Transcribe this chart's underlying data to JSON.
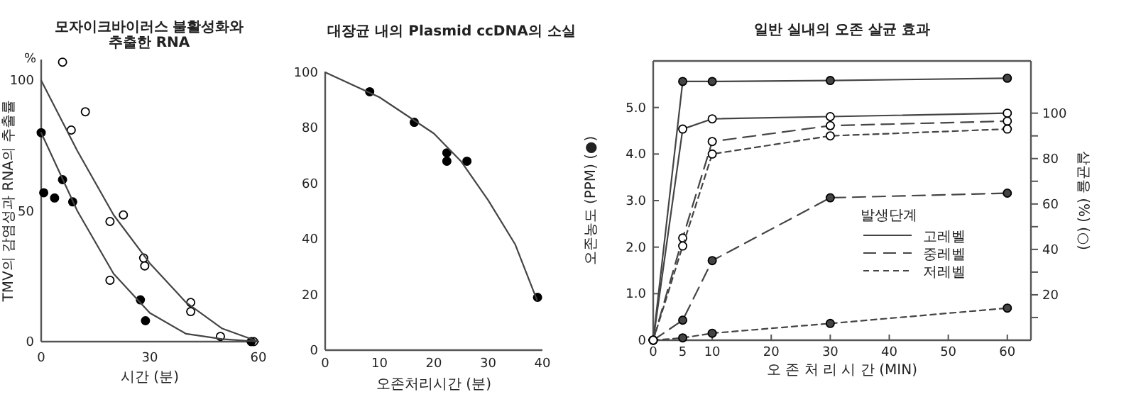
{
  "chart_data": [
    {
      "type": "scatter",
      "title": "모자이크바이러스 불활성화와\n추출한 RNA",
      "xlabel": "시간 (분)",
      "ylabel": "TMV의 감염성과 RNA의 추출률",
      "annotations": [
        "%"
      ],
      "xlim": [
        0,
        60
      ],
      "ylim": [
        0,
        108
      ],
      "xticks": [
        0,
        30,
        60
      ],
      "yticks": [
        0,
        50,
        100
      ],
      "series": [
        {
          "color": "#ffffff",
          "marker": "circle",
          "x": [
            5.9,
            8.3,
            12.2,
            19.0,
            22.7,
            28.3,
            28.6,
            19.0,
            41.3,
            41.3,
            49.5,
            58.7
          ],
          "values": [
            107,
            81,
            88,
            46,
            48.5,
            32,
            29,
            23.5,
            15,
            11.5,
            2,
            0
          ]
        },
        {
          "color": "#000000",
          "marker": "circle",
          "x": [
            0,
            0.7,
            3.7,
            5.9,
            8.7,
            27.4,
            28.8,
            58
          ],
          "values": [
            80,
            57,
            55,
            62,
            53.5,
            16,
            8,
            0
          ]
        },
        {
          "type": "line",
          "color": "#444444",
          "marker": "none",
          "x": [
            0,
            10,
            20,
            30,
            40,
            50,
            60
          ],
          "values": [
            100,
            73,
            48.5,
            30,
            15,
            5,
            0
          ]
        },
        {
          "type": "line",
          "color": "#444444",
          "marker": "none",
          "x": [
            0,
            10,
            20,
            30,
            40,
            50,
            60
          ],
          "values": [
            80,
            50,
            26,
            11,
            3,
            1,
            0
          ]
        }
      ]
    },
    {
      "type": "scatter",
      "title": "대장균 내의 Plasmid ccDNA의 소실",
      "xlabel": "오존처리시간 (분)",
      "xlim": [
        0,
        40
      ],
      "ylim": [
        0,
        100
      ],
      "xticks": [
        0,
        10,
        20,
        30,
        40
      ],
      "yticks": [
        0,
        20,
        40,
        60,
        80,
        100
      ],
      "series": [
        {
          "color": "#000000",
          "marker": "circle",
          "x": [
            8.2,
            16.4,
            22.4,
            22.4,
            26.1,
            39.1
          ],
          "values": [
            93,
            82,
            71,
            68,
            68,
            19
          ]
        },
        {
          "type": "line",
          "color": "#444444",
          "marker": "none",
          "x": [
            0,
            10,
            20,
            25,
            30,
            35,
            39
          ],
          "values": [
            100,
            91,
            78,
            68,
            54,
            38,
            18
          ]
        }
      ]
    },
    {
      "type": "line",
      "title": "일반 실내의 오존 살균 효과",
      "xlabel": "오 존 처 리 시 간 (MIN)",
      "ylabel": "오존농도 (PPM) (●)",
      "y2label": "살균율 (%) (○)",
      "legend_title": "발생단계",
      "legend": "center right",
      "marker": "circle",
      "xlim": [
        0,
        64
      ],
      "ylim": [
        0,
        6
      ],
      "y2lim": [
        0,
        123
      ],
      "xticks": [
        0,
        5,
        10,
        20,
        30,
        40,
        50,
        60
      ],
      "yticks": [
        0,
        {
          "value": 1,
          "label": "1.0"
        },
        {
          "value": 2,
          "label": "2.0"
        },
        {
          "value": 3,
          "label": "3.0"
        },
        {
          "value": 4,
          "label": "4.0"
        },
        {
          "value": 5,
          "label": "5.0"
        }
      ],
      "y2ticks": [
        {
          "value": 10,
          "label": null
        },
        20,
        {
          "value": 30,
          "label": null
        },
        40,
        {
          "value": 50,
          "label": null
        },
        60,
        {
          "value": 70,
          "label": null
        },
        80,
        {
          "value": 90,
          "label": null
        },
        100
      ],
      "series": [
        {
          "name": "고레벨",
          "color": "#444444",
          "line_style": "solid",
          "x": [
            0,
            5,
            10,
            30,
            60
          ],
          "values": [
            0,
            5.56,
            5.56,
            5.58,
            5.63
          ]
        },
        {
          "name": "중레벨",
          "color": "#444444",
          "line_style": "dashed",
          "x": [
            0,
            5,
            10,
            30,
            60
          ],
          "values": [
            0,
            0.43,
            1.71,
            3.06,
            3.16
          ]
        },
        {
          "name": "저레벨",
          "color": "#444444",
          "line_style": "dotted",
          "x": [
            0,
            5,
            10,
            30,
            60
          ],
          "values": [
            0,
            0.05,
            0.15,
            0.36,
            0.69
          ]
        },
        {
          "color": "#444444",
          "axis": "y2",
          "line_style": "solid",
          "x": [
            0,
            5,
            10,
            30,
            60
          ],
          "values": [
            0,
            93,
            97.5,
            98.5,
            100
          ]
        },
        {
          "color": "#444444",
          "axis": "y2",
          "line_style": "dashed",
          "x": [
            0,
            5,
            10,
            30,
            60
          ],
          "values": [
            0,
            45,
            87.5,
            94.5,
            96.5
          ]
        },
        {
          "color": "#444444",
          "axis": "y2",
          "line_style": "dotted",
          "x": [
            0,
            5,
            10,
            30,
            60
          ],
          "values": [
            0,
            41.5,
            82,
            90,
            93
          ]
        }
      ]
    }
  ]
}
